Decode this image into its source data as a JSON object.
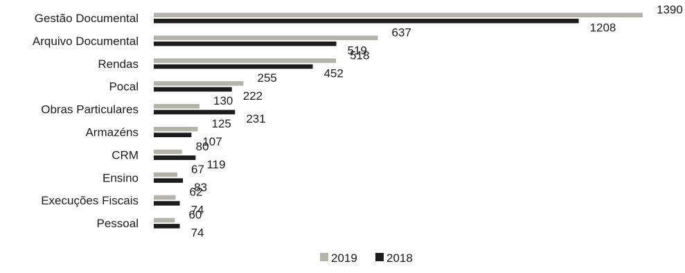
{
  "chart_data": {
    "type": "bar",
    "orientation": "horizontal",
    "categories": [
      "Gestão Documental",
      "Arquivo Documental",
      "Rendas",
      "Pocal",
      "Obras Particulares",
      "Armazéns",
      "CRM",
      "Ensino",
      "Execuções Fiscais",
      "Pessoal"
    ],
    "series": [
      {
        "name": "2019",
        "values": [
          1390,
          637,
          518,
          255,
          130,
          125,
          80,
          67,
          62,
          60
        ],
        "color": "#b4b3aa"
      },
      {
        "name": "2018",
        "values": [
          1208,
          519,
          452,
          222,
          231,
          107,
          119,
          83,
          74,
          74
        ],
        "color": "#1c1c1c"
      }
    ],
    "title": "",
    "xlabel": "",
    "ylabel": "",
    "xlim": [
      0,
      1390
    ],
    "grid": false,
    "legend_position": "bottom",
    "data_labels": true
  }
}
